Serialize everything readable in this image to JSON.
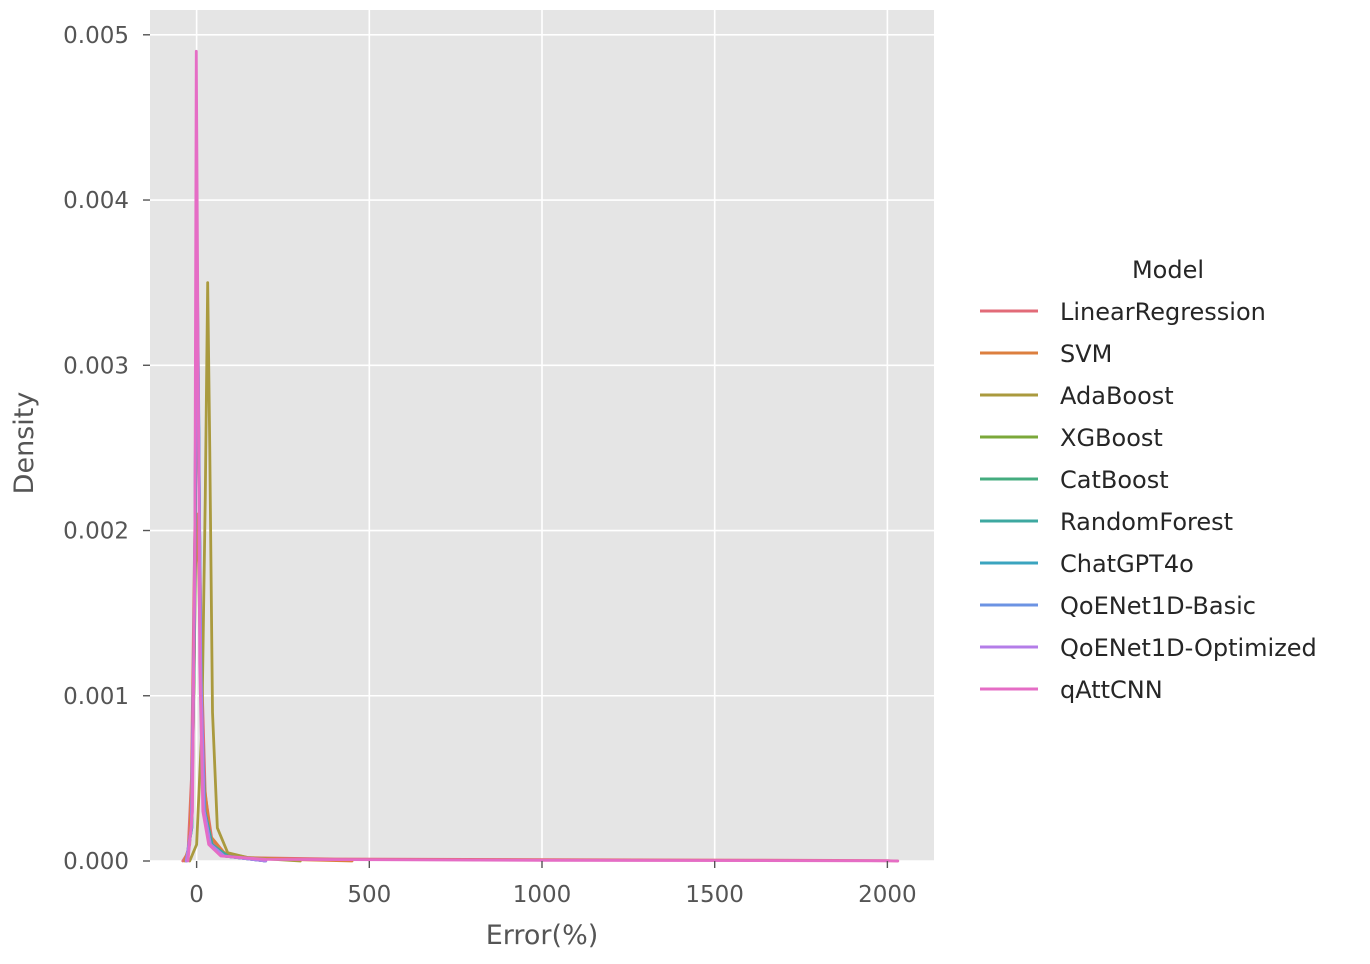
{
  "chart_data": {
    "type": "line",
    "subtype": "kde-density",
    "title": "",
    "xlabel": "Error(%)",
    "ylabel": "Density",
    "xlim": [
      -135,
      2135
    ],
    "ylim": [
      0,
      0.00515
    ],
    "xticks": [
      0,
      500,
      1000,
      1500,
      2000
    ],
    "yticks": [
      0.0,
      0.001,
      0.002,
      0.003,
      0.004,
      0.005
    ],
    "xtick_labels": [
      "0",
      "500",
      "1000",
      "1500",
      "2000"
    ],
    "ytick_labels": [
      "0.000",
      "0.001",
      "0.002",
      "0.003",
      "0.004",
      "0.005"
    ],
    "grid": true,
    "style": "ggplot",
    "legend": {
      "title": "Model",
      "placement": "right outside"
    },
    "series": [
      {
        "name": "LinearRegression",
        "color": "#e26b78",
        "points": [
          [
            -40,
            0
          ],
          [
            -25,
            5e-05
          ],
          [
            -15,
            0.0005
          ],
          [
            -8,
            0.0016
          ],
          [
            0,
            0.00276
          ],
          [
            6,
            0.0024
          ],
          [
            14,
            0.0012
          ],
          [
            25,
            0.0004
          ],
          [
            45,
            0.00012
          ],
          [
            80,
            5e-05
          ],
          [
            150,
            2e-05
          ],
          [
            400,
            1.2e-05
          ],
          [
            1000,
            8e-06
          ],
          [
            1600,
            5e-06
          ],
          [
            1850,
            4e-06
          ],
          [
            2000,
            2e-06
          ],
          [
            2030,
            0
          ]
        ]
      },
      {
        "name": "SVM",
        "color": "#dc7f3f",
        "points": [
          [
            -35,
            0
          ],
          [
            -20,
            0.0001
          ],
          [
            -10,
            0.0008
          ],
          [
            -3,
            0.0018
          ],
          [
            3,
            0.0021
          ],
          [
            10,
            0.0013
          ],
          [
            20,
            0.0005
          ],
          [
            40,
            0.00015
          ],
          [
            80,
            5e-05
          ],
          [
            150,
            2e-05
          ],
          [
            300,
            8e-06
          ],
          [
            450,
            0
          ]
        ]
      },
      {
        "name": "AdaBoost",
        "color": "#aa9a3e",
        "points": [
          [
            -20,
            0
          ],
          [
            0,
            0.0001
          ],
          [
            15,
            0.0008
          ],
          [
            25,
            0.0022
          ],
          [
            32,
            0.0035
          ],
          [
            38,
            0.0025
          ],
          [
            46,
            0.0009
          ],
          [
            60,
            0.0002
          ],
          [
            90,
            5e-05
          ],
          [
            150,
            2e-05
          ],
          [
            300,
            0
          ]
        ]
      },
      {
        "name": "XGBoost",
        "color": "#7ba83a",
        "points": [
          [
            -30,
            0
          ],
          [
            -15,
            0.0002
          ],
          [
            -6,
            0.0013
          ],
          [
            0,
            0.0031
          ],
          [
            5,
            0.0026
          ],
          [
            12,
            0.0011
          ],
          [
            22,
            0.0003
          ],
          [
            40,
            0.0001
          ],
          [
            80,
            3e-05
          ],
          [
            200,
            0
          ]
        ]
      },
      {
        "name": "CatBoost",
        "color": "#44ac7f",
        "points": [
          [
            -30,
            0
          ],
          [
            -14,
            0.0002
          ],
          [
            -6,
            0.0015
          ],
          [
            0,
            0.0033
          ],
          [
            5,
            0.0027
          ],
          [
            12,
            0.0011
          ],
          [
            22,
            0.0003
          ],
          [
            40,
            0.0001
          ],
          [
            80,
            3e-05
          ],
          [
            200,
            0
          ]
        ]
      },
      {
        "name": "RandomForest",
        "color": "#3da8a0",
        "points": [
          [
            -30,
            0
          ],
          [
            -14,
            0.0002
          ],
          [
            -6,
            0.0014
          ],
          [
            1,
            0.0034
          ],
          [
            6,
            0.0026
          ],
          [
            13,
            0.001
          ],
          [
            24,
            0.0003
          ],
          [
            45,
            0.0001
          ],
          [
            90,
            3e-05
          ],
          [
            200,
            0
          ]
        ]
      },
      {
        "name": "ChatGPT4o",
        "color": "#3ba4bf",
        "points": [
          [
            -30,
            0
          ],
          [
            -15,
            0.0002
          ],
          [
            -6,
            0.0016
          ],
          [
            0,
            0.0038
          ],
          [
            5,
            0.0029
          ],
          [
            12,
            0.0011
          ],
          [
            22,
            0.0003
          ],
          [
            40,
            0.0001
          ],
          [
            80,
            3e-05
          ],
          [
            200,
            0
          ]
        ]
      },
      {
        "name": "QoENet1D-Basic",
        "color": "#6c93e3",
        "points": [
          [
            -30,
            0
          ],
          [
            -15,
            0.0002
          ],
          [
            -6,
            0.0016
          ],
          [
            0,
            0.0039
          ],
          [
            5,
            0.003
          ],
          [
            12,
            0.0012
          ],
          [
            22,
            0.0003
          ],
          [
            40,
            0.0001
          ],
          [
            80,
            3e-05
          ],
          [
            200,
            0
          ]
        ]
      },
      {
        "name": "QoENet1D-Optimized",
        "color": "#b47de8",
        "points": [
          [
            -30,
            0
          ],
          [
            -15,
            0.0002
          ],
          [
            -6,
            0.0016
          ],
          [
            0,
            0.0037
          ],
          [
            5,
            0.0028
          ],
          [
            12,
            0.0011
          ],
          [
            22,
            0.0003
          ],
          [
            40,
            0.0001
          ],
          [
            80,
            3e-05
          ],
          [
            200,
            0
          ]
        ]
      },
      {
        "name": "qAttCNN",
        "color": "#e56dc5",
        "points": [
          [
            -25,
            0
          ],
          [
            -12,
            0.0003
          ],
          [
            -5,
            0.002
          ],
          [
            -1,
            0.0049
          ],
          [
            3,
            0.0035
          ],
          [
            9,
            0.0012
          ],
          [
            18,
            0.0003
          ],
          [
            35,
            0.0001
          ],
          [
            70,
            3e-05
          ],
          [
            200,
            1e-05
          ],
          [
            1000,
            4e-06
          ],
          [
            2000,
            1e-06
          ],
          [
            2030,
            0
          ]
        ]
      }
    ]
  }
}
